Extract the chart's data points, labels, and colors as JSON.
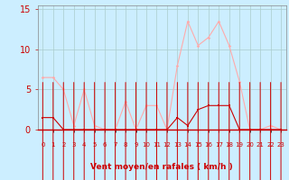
{
  "x": [
    0,
    1,
    2,
    3,
    4,
    5,
    6,
    7,
    8,
    9,
    10,
    11,
    12,
    13,
    14,
    15,
    16,
    17,
    18,
    19,
    20,
    21,
    22,
    23
  ],
  "rafales": [
    6.5,
    6.5,
    5.0,
    0.5,
    5.0,
    0.5,
    0.0,
    0.0,
    3.5,
    0.0,
    3.0,
    3.0,
    0.0,
    8.0,
    13.5,
    10.5,
    11.5,
    13.5,
    10.5,
    6.0,
    0.0,
    0.0,
    0.5,
    0.0
  ],
  "moyen": [
    1.5,
    1.5,
    0.0,
    0.0,
    0.0,
    0.0,
    0.0,
    0.0,
    0.0,
    0.0,
    0.0,
    0.0,
    0.0,
    1.5,
    0.5,
    2.5,
    3.0,
    3.0,
    3.0,
    0.0,
    0.0,
    0.0,
    0.0,
    0.0
  ],
  "color_rafales": "#ffaaaa",
  "color_moyen": "#cc0000",
  "bg_color": "#cceeff",
  "grid_color": "#aacccc",
  "xlabel": "Vent moyen/en rafales ( km/h )",
  "ylabel_ticks": [
    0,
    5,
    10,
    15
  ],
  "ylim": [
    0,
    15.5
  ],
  "xlim": [
    -0.5,
    23.5
  ],
  "tick_color": "#cc0000",
  "label_color": "#cc0000",
  "spine_color": "#888888"
}
